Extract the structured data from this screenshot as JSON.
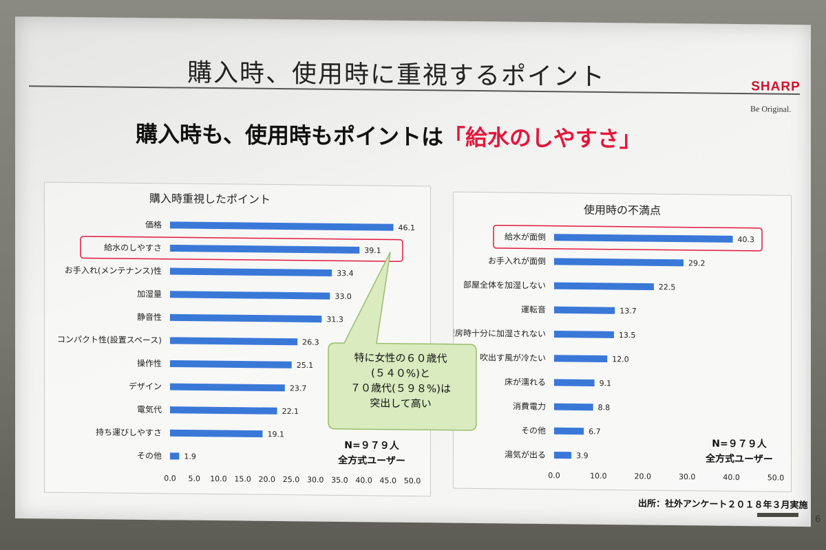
{
  "slide": {
    "title": "購入時、使用時に重視するポイント",
    "subtitle_prefix": "購入時も、使用時もポイントは",
    "subtitle_emphasis": "「給水のしやすさ」",
    "logo": "SHARP",
    "logo_tagline": "Be Original.",
    "source": "出所：社外アンケート２０１８年３月実施",
    "page_number": "6",
    "callout": "特に女性の６０歳代\n(５４０%)と\n７０歳代(５９８%)は\n突出して高い",
    "accent_color": "#e3173d",
    "bar_color": "#3a78d8",
    "highlight_color": "#e3173d"
  },
  "chart_data": [
    {
      "type": "bar",
      "orientation": "horizontal",
      "title": "購入時重視したポイント",
      "categories": [
        "価格",
        "給水のしやすさ",
        "お手入れ(メンテナンス)性",
        "加湿量",
        "静音性",
        "コンパクト性(設置スペース)",
        "操作性",
        "デザイン",
        "電気代",
        "持ち運びしやすさ",
        "その他"
      ],
      "values": [
        46.1,
        39.1,
        33.4,
        33.0,
        31.3,
        26.3,
        25.1,
        23.7,
        22.1,
        19.1,
        1.9
      ],
      "value_labels": [
        "46.1",
        "39.1",
        "33.4",
        "33.0",
        "31.3",
        "26.3",
        "25.1",
        "23.7",
        "22.1",
        "19.1",
        "1.9"
      ],
      "xlim": [
        0,
        50
      ],
      "ticks": [
        "0.0",
        "5.0",
        "10.0",
        "15.0",
        "20.0",
        "25.0",
        "30.0",
        "35.0",
        "40.0",
        "45.0",
        "50.0"
      ],
      "highlighted": "給水のしやすさ",
      "note_line1": "N=９７９人",
      "note_line2": "全方式ユーザー"
    },
    {
      "type": "bar",
      "orientation": "horizontal",
      "title": "使用時の不満点",
      "categories": [
        "給水が面倒",
        "お手入れが面倒",
        "部屋全体を加湿しない",
        "運転音",
        "暖房時十分に加湿されない",
        "吹出す風が冷たい",
        "床が濡れる",
        "消費電力",
        "その他",
        "湯気が出る"
      ],
      "values": [
        40.3,
        29.2,
        22.5,
        13.7,
        13.5,
        12.0,
        9.1,
        8.8,
        6.7,
        3.9
      ],
      "value_labels": [
        "40.3",
        "29.2",
        "22.5",
        "13.7",
        "13.5",
        "12.0",
        "9.1",
        "8.8",
        "6.7",
        "3.9"
      ],
      "xlim": [
        0,
        50
      ],
      "ticks": [
        "0.0",
        "10.0",
        "20.0",
        "30.0",
        "40.0",
        "50.0"
      ],
      "highlighted": "給水が面倒",
      "note_line1": "N=９７９人",
      "note_line2": "全方式ユーザー"
    }
  ]
}
